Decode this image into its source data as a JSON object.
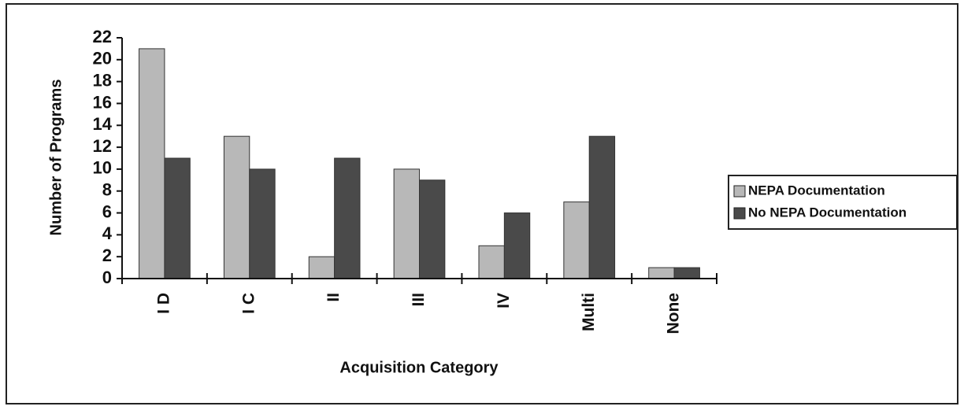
{
  "chart_data": {
    "type": "bar",
    "x_label": "Acquisition Category",
    "y_label": "Number of Programs",
    "categories": [
      "I D",
      "I C",
      "II",
      "III",
      "IV",
      "Multi",
      "None"
    ],
    "series": [
      {
        "name": "NEPA Documentation",
        "color": "#b8b8b8",
        "values": [
          21,
          13,
          2,
          10,
          3,
          7,
          1
        ]
      },
      {
        "name": "No NEPA Documentation",
        "color": "#4a4a4a",
        "values": [
          11,
          10,
          11,
          9,
          6,
          13,
          1
        ]
      }
    ],
    "ylim": [
      0,
      22
    ],
    "yticks": [
      0,
      2,
      4,
      6,
      8,
      10,
      12,
      14,
      16,
      18,
      20,
      22
    ],
    "grid": false,
    "legend": "right"
  }
}
